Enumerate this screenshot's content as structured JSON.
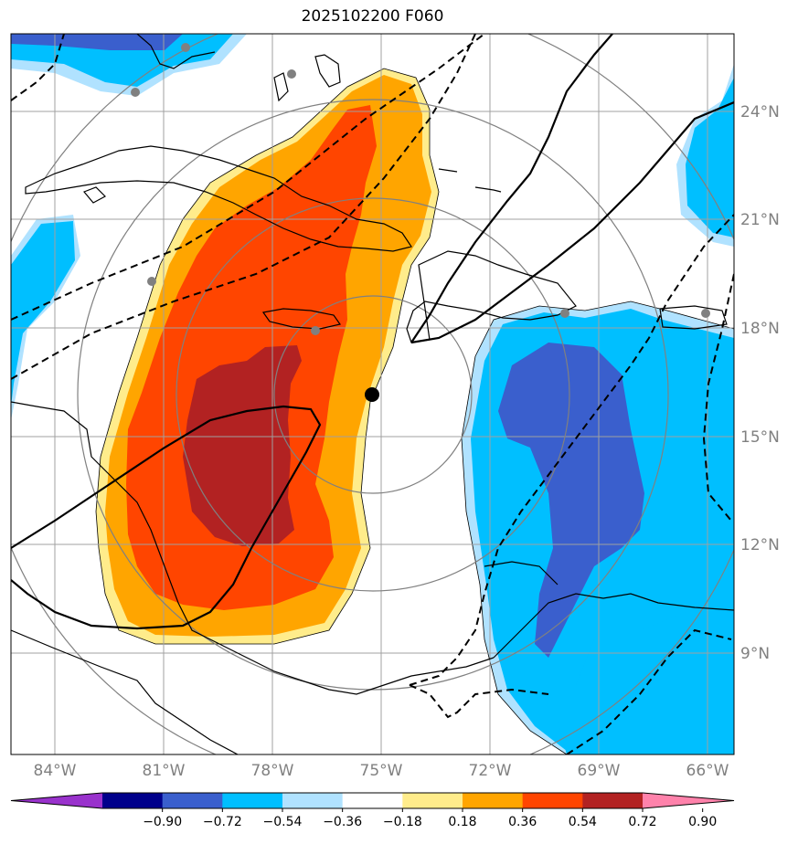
{
  "title": "2025102200 F060",
  "lat_labels": [
    "24°N",
    "21°N",
    "18°N",
    "15°N",
    "12°N",
    "9°N"
  ],
  "lon_labels": [
    "84°W",
    "81°W",
    "78°W",
    "75°W",
    "72°W",
    "69°W",
    "66°W"
  ],
  "colorbar": {
    "ticks": [
      "−0.90",
      "−0.72",
      "−0.54",
      "−0.36",
      "−0.18",
      "0.18",
      "0.36",
      "0.54",
      "0.72",
      "0.90"
    ],
    "colors": [
      "#9932CC",
      "#00008B",
      "#3A5FCD",
      "#00BFFF",
      "#B0E2FF",
      "#FFFFFF",
      "#FFEC8B",
      "#FFA500",
      "#FF4500",
      "#B22222",
      "#FF82AB"
    ]
  },
  "colors": {
    "gridline": "#a0a0a0",
    "range_ring": "#808080",
    "coast": "#000000",
    "center_marker": "#000000",
    "station": "#808080"
  }
}
